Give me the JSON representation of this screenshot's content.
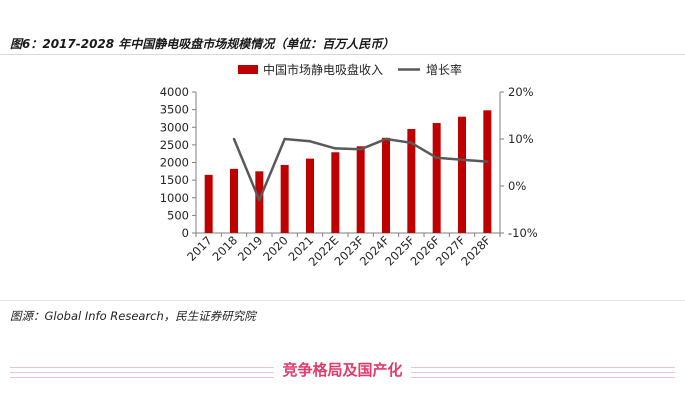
{
  "figure": {
    "title": "图6：2017-2028 年中国静电吸盘市场规模情况（单位：百万人民币）",
    "source": "图源：Global Info Research，民生证券研究院"
  },
  "section": {
    "heading": "竞争格局及国产化"
  },
  "chart_data": {
    "type": "bar+line",
    "categories": [
      "2017",
      "2018",
      "2019",
      "2020",
      "2021",
      "2022E",
      "2023F",
      "2024F",
      "2025F",
      "2026F",
      "2027F",
      "2028F"
    ],
    "series": [
      {
        "name": "中国市场静电吸盘收入",
        "type": "bar",
        "axis": "left",
        "color": "#c00000",
        "values": [
          1650,
          1820,
          1750,
          1930,
          2110,
          2290,
          2460,
          2700,
          2950,
          3120,
          3300,
          3480
        ]
      },
      {
        "name": "增长率",
        "type": "line",
        "axis": "right",
        "color": "#595959",
        "values": [
          null,
          10.0,
          -3.0,
          10.0,
          9.5,
          8.0,
          7.8,
          10.0,
          9.2,
          6.0,
          5.6,
          5.2
        ]
      }
    ],
    "y_left": {
      "min": 0,
      "max": 4000,
      "step": 500,
      "ticks": [
        "0",
        "500",
        "1000",
        "1500",
        "2000",
        "2500",
        "3000",
        "3500",
        "4000"
      ]
    },
    "y_right": {
      "min": -10,
      "max": 20,
      "step": 10,
      "ticks": [
        "-10%",
        "0%",
        "10%",
        "20%"
      ]
    },
    "legend_position": "top",
    "grid": false
  }
}
